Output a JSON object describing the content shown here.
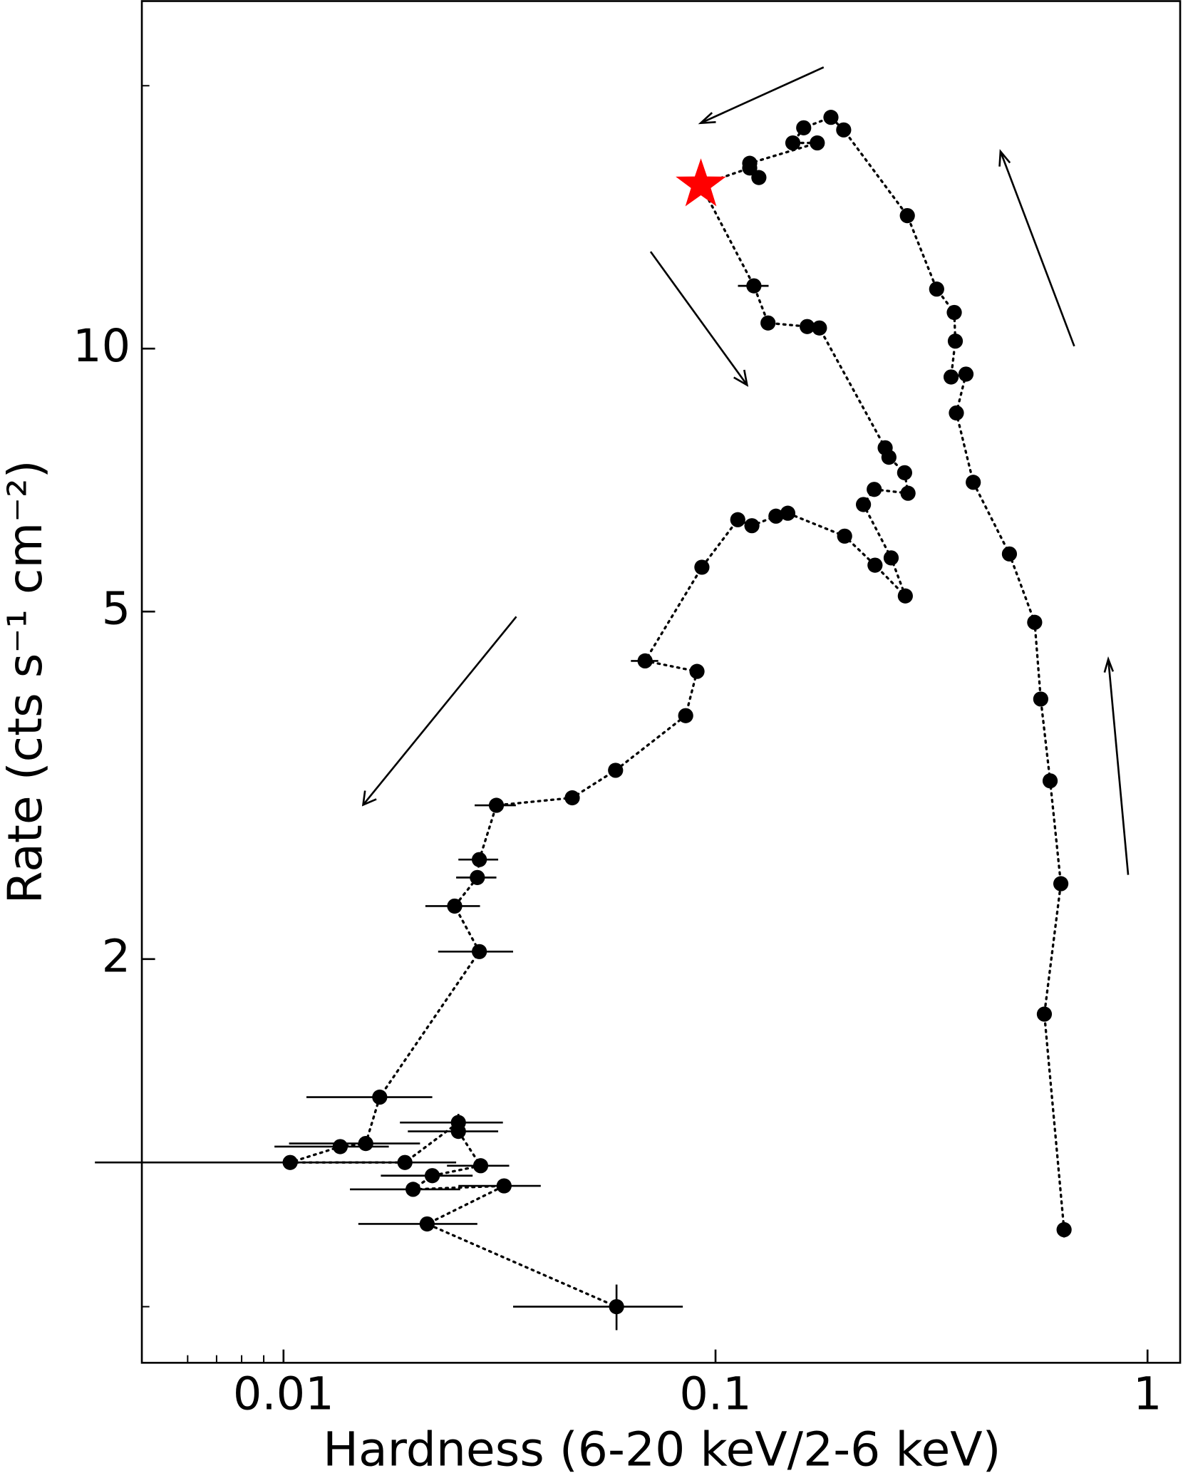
{
  "chart_data": {
    "type": "scatter",
    "xlabel": "Hardness (6-20 keV/2-6 keV)",
    "ylabel": "Rate (cts s⁻¹ cm⁻²)",
    "xscale": "log",
    "yscale": "log",
    "xlim": [
      0.0047,
      1.19
    ],
    "ylim": [
      0.69,
      25
    ],
    "xticks": [
      0.01,
      0.1,
      1
    ],
    "yticks": [
      2,
      5,
      10
    ],
    "xminor_ticks": [
      0.006,
      0.007,
      0.008,
      0.009
    ],
    "yminor_ticks": [
      0.8,
      20
    ],
    "series": [
      {
        "color": "#000000",
        "star_index": 23,
        "star_color": "#ff0000",
        "x": [
          0.641,
          0.577,
          0.63,
          0.595,
          0.566,
          0.548,
          0.479,
          0.395,
          0.361,
          0.38,
          0.351,
          0.359,
          0.357,
          0.325,
          0.278,
          0.198,
          0.185,
          0.16,
          0.151,
          0.172,
          0.12,
          0.126,
          0.12,
          0.0925,
          0.1227,
          0.1323,
          0.163,
          0.174,
          0.247,
          0.252,
          0.274,
          0.279,
          0.233,
          0.22,
          0.255,
          0.275,
          0.234,
          0.199,
          0.147,
          0.138,
          0.1214,
          0.1126,
          0.093,
          0.0687,
          0.0906,
          0.0853,
          0.0587,
          0.0466,
          0.0311,
          0.0284,
          0.0281,
          0.0249,
          0.0284,
          0.0167,
          0.0155,
          0.01353,
          0.01036,
          0.0191,
          0.0254,
          0.0254,
          0.0286,
          0.0221,
          0.01995,
          0.0324,
          0.0215,
          0.059
        ],
        "values": [
          0.98,
          1.73,
          2.44,
          3.2,
          3.97,
          4.86,
          5.82,
          7.03,
          8.44,
          9.35,
          9.28,
          10.2,
          11.0,
          11.7,
          14.2,
          17.8,
          18.4,
          17.9,
          17.2,
          17.2,
          16.3,
          15.7,
          16.1,
          15.4,
          11.8,
          10.7,
          10.6,
          10.56,
          7.7,
          7.51,
          7.21,
          6.83,
          6.9,
          6.63,
          5.76,
          5.21,
          5.65,
          6.1,
          6.48,
          6.43,
          6.27,
          6.37,
          5.62,
          4.39,
          4.27,
          3.8,
          3.29,
          3.06,
          3.0,
          2.6,
          2.48,
          2.3,
          2.04,
          1.39,
          1.23,
          1.22,
          1.17,
          1.17,
          1.3,
          1.27,
          1.16,
          1.13,
          1.09,
          1.1,
          0.995,
          0.8
        ],
        "xerr": [
          0,
          0,
          0,
          0,
          0,
          0,
          0,
          0,
          0,
          0,
          0,
          0,
          0,
          0,
          0,
          0,
          0,
          0,
          0,
          0,
          0,
          0,
          0,
          0,
          0.01,
          0.005,
          0,
          0.005,
          0,
          0,
          0,
          0,
          0,
          0,
          0,
          0,
          0,
          0,
          0,
          0,
          0,
          0,
          0,
          0.005,
          0,
          0,
          0,
          0,
          0.0034,
          0.003,
          0.003,
          0.0036,
          0.0056,
          0.0054,
          0.0052,
          0.004,
          0.0067,
          0.006,
          0.0068,
          0.006,
          0.0047,
          0.0053,
          0.0057,
          0.007,
          0.0066,
          0.025
        ],
        "yerr": [
          0.02,
          0,
          0,
          0,
          0,
          0,
          0,
          0,
          0,
          0,
          0,
          0,
          0,
          0,
          0,
          0,
          0,
          0,
          0,
          0,
          0,
          0,
          0,
          0,
          0,
          0,
          0,
          0,
          0,
          0,
          0,
          0,
          0,
          0,
          0,
          0,
          0,
          0,
          0,
          0,
          0,
          0,
          0,
          0,
          0,
          0,
          0,
          0,
          0,
          0,
          0,
          0,
          0,
          0,
          0,
          0,
          0,
          0,
          0.03,
          0,
          0,
          0,
          0,
          0,
          0,
          0.048
        ]
      }
    ]
  }
}
